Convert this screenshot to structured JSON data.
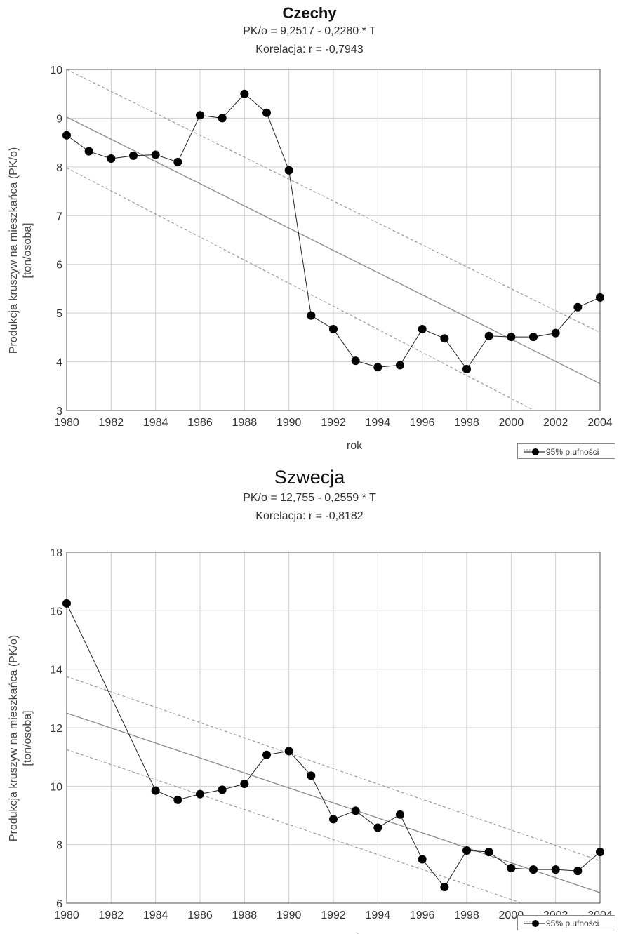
{
  "chart_data": [
    {
      "type": "line",
      "title": "Czechy",
      "equation": "PK/o = 9,2517 - 0,2280  * T",
      "correlation": "Korelacja: r =   -0,7943",
      "xlabel": "rok",
      "ylabel_line1": "Produkcja kruszyw na mieszkańca (PK/o)",
      "ylabel_line2": "[ton/osoba]",
      "xlim": [
        1980,
        2004
      ],
      "ylim": [
        3,
        10
      ],
      "xticks": [
        "1980",
        "1982",
        "1984",
        "1986",
        "1988",
        "1990",
        "1992",
        "1994",
        "1996",
        "1998",
        "2000",
        "2002",
        "2004"
      ],
      "yticks": [
        "3",
        "4",
        "5",
        "6",
        "7",
        "8",
        "9",
        "10"
      ],
      "grid": true,
      "legend": "95% p.ufności",
      "legend_position": "bottom-right",
      "x": [
        1980,
        1981,
        1982,
        1983,
        1984,
        1985,
        1986,
        1987,
        1988,
        1989,
        1990,
        1991,
        1992,
        1993,
        1994,
        1995,
        1996,
        1997,
        1998,
        1999,
        2000,
        2001,
        2002,
        2003,
        2004
      ],
      "values": [
        8.65,
        8.32,
        8.17,
        8.23,
        8.25,
        8.1,
        9.06,
        9.0,
        9.5,
        9.11,
        7.93,
        4.95,
        4.67,
        4.02,
        3.89,
        3.93,
        4.67,
        4.48,
        3.85,
        4.53,
        4.51,
        4.51,
        4.59,
        5.12,
        5.32
      ],
      "regression": {
        "intercept": 9.2517,
        "slope": -0.228
      },
      "ci_upper": {
        "start": 10.0,
        "end": 4.6
      },
      "ci_lower": {
        "start": 7.98,
        "end": 2.3
      },
      "colors": {
        "data": "#000000",
        "fit": "#8a8a8a",
        "ci": "#9a9a9a",
        "grid": "#cfcfcf"
      }
    },
    {
      "type": "line",
      "title": "Szwecja",
      "equation": "PK/o = 12,755 - 0,2559  * T",
      "correlation": "Korelacja: r =   -0,8182",
      "xlabel": "rok",
      "ylabel_line1": "Produkcja kruszyw na mieszkańca (PK/o)",
      "ylabel_line2": "[ton/osoba]",
      "xlim": [
        1980,
        2004
      ],
      "ylim": [
        6,
        18
      ],
      "xticks": [
        "1980",
        "1982",
        "1984",
        "1986",
        "1988",
        "1990",
        "1992",
        "1994",
        "1996",
        "1998",
        "2000",
        "2002",
        "2004"
      ],
      "yticks": [
        "6",
        "8",
        "10",
        "12",
        "14",
        "16",
        "18"
      ],
      "grid": true,
      "legend": "95% p.ufności",
      "legend_position": "bottom-right",
      "x": [
        1980,
        1984,
        1985,
        1986,
        1987,
        1988,
        1989,
        1990,
        1991,
        1992,
        1993,
        1994,
        1995,
        1996,
        1997,
        1998,
        1999,
        2000,
        2001,
        2002,
        2003,
        2004
      ],
      "values": [
        16.25,
        9.85,
        9.53,
        9.73,
        9.88,
        10.08,
        11.07,
        11.2,
        10.36,
        8.87,
        9.16,
        8.58,
        9.03,
        7.5,
        6.55,
        7.8,
        7.75,
        7.2,
        7.15,
        7.15,
        7.1,
        7.75
      ],
      "regression": {
        "intercept": 12.755,
        "slope": -0.2559
      },
      "ci_upper": {
        "start": 13.75,
        "end": 7.45
      },
      "ci_lower": {
        "start": 11.25,
        "end": 5.1
      },
      "colors": {
        "data": "#000000",
        "fit": "#8a8a8a",
        "ci": "#9a9a9a",
        "grid": "#cfcfcf"
      }
    }
  ]
}
